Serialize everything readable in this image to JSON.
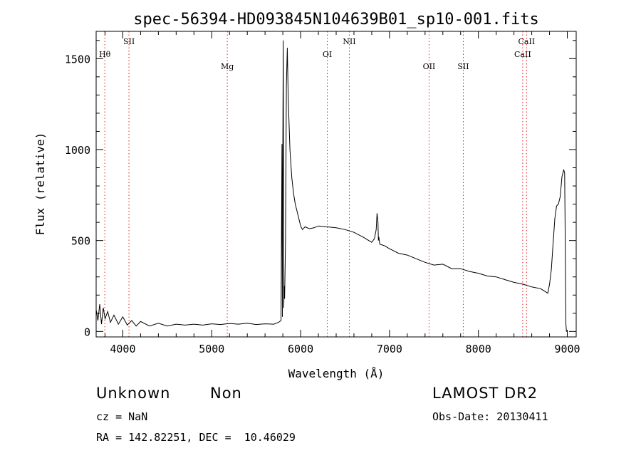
{
  "chart_data": {
    "type": "line",
    "title": "spec-56394-HD093845N104639B01_sp10-001.fits",
    "xlabel": "Wavelength (Å)",
    "ylabel": "Flux (relative)",
    "xlim": [
      3700,
      9100
    ],
    "ylim": [
      -30,
      1650
    ],
    "x_ticks": [
      4000,
      5000,
      6000,
      7000,
      8000,
      9000
    ],
    "y_ticks": [
      0,
      500,
      1000,
      1500
    ],
    "grid": false,
    "series": [
      {
        "x": [
          3700,
          3720,
          3740,
          3760,
          3780,
          3800,
          3830,
          3860,
          3900,
          3950,
          4000,
          4050,
          4100,
          4150,
          4200,
          4300,
          4400,
          4500,
          4600,
          4700,
          4800,
          4900,
          5000,
          5100,
          5200,
          5300,
          5400,
          5500,
          5600,
          5700,
          5750,
          5780,
          5790,
          5795,
          5800,
          5805,
          5810,
          5815,
          5820,
          5830,
          5840,
          5850,
          5860,
          5870,
          5880,
          5900,
          5920,
          5940,
          5960,
          5980,
          6000,
          6020,
          6050,
          6100,
          6150,
          6200,
          6300,
          6400,
          6500,
          6600,
          6700,
          6750,
          6800,
          6830,
          6850,
          6860,
          6870,
          6875,
          6880,
          6890,
          6920,
          6950,
          7000,
          7100,
          7200,
          7300,
          7400,
          7500,
          7600,
          7700,
          7800,
          7900,
          8000,
          8100,
          8200,
          8300,
          8400,
          8500,
          8600,
          8700,
          8750,
          8780,
          8800,
          8820,
          8840,
          8860,
          8880,
          8900,
          8920,
          8940,
          8960,
          8970,
          8975,
          8980,
          8985,
          8990,
          9000
        ],
        "y": [
          120,
          60,
          150,
          40,
          130,
          70,
          110,
          50,
          90,
          40,
          80,
          35,
          60,
          30,
          55,
          30,
          45,
          30,
          40,
          35,
          40,
          35,
          42,
          38,
          44,
          40,
          45,
          38,
          42,
          40,
          50,
          60,
          1030,
          80,
          1020,
          1600,
          130,
          250,
          180,
          500,
          1350,
          1560,
          1300,
          1150,
          1000,
          850,
          760,
          700,
          660,
          620,
          580,
          560,
          575,
          565,
          570,
          580,
          575,
          570,
          560,
          545,
          520,
          505,
          490,
          510,
          560,
          650,
          600,
          500,
          520,
          480,
          475,
          470,
          455,
          430,
          420,
          400,
          380,
          365,
          370,
          345,
          345,
          330,
          320,
          305,
          300,
          285,
          270,
          260,
          245,
          235,
          220,
          210,
          260,
          340,
          480,
          620,
          690,
          700,
          740,
          850,
          890,
          870,
          600,
          300,
          40,
          0,
          0
        ]
      }
    ],
    "line_markers": [
      {
        "label": "Hθ",
        "x": 3797,
        "row": 1
      },
      {
        "label": "SII",
        "x": 4069,
        "row": 0
      },
      {
        "label": "Mg",
        "x": 5175,
        "row": 2
      },
      {
        "label": "OI",
        "x": 6300,
        "row": 1
      },
      {
        "label": "NII",
        "x": 6548,
        "row": 0
      },
      {
        "label": "OII",
        "x": 7445,
        "row": 2
      },
      {
        "label": "SII",
        "x": 7830,
        "row": 2
      },
      {
        "label": "CaII",
        "x": 8498,
        "row": 1
      },
      {
        "label": "CaII",
        "x": 8542,
        "row": 0
      }
    ]
  },
  "info": {
    "object_class": "Unknown",
    "subclass": "Non",
    "survey": "LAMOST DR2",
    "cz": "cz = NaN",
    "obs_date": "Obs-Date: 20130411",
    "coords": "RA = 142.82251, DEC =  10.46029"
  }
}
